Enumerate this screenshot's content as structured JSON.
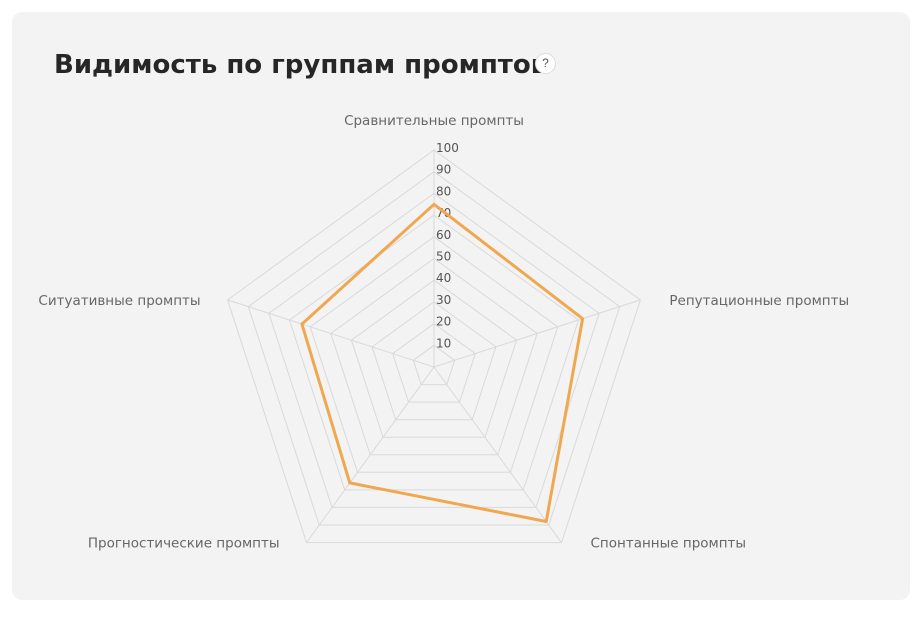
{
  "header": {
    "title": "Видимость по группам промптов",
    "help_icon": "question-icon",
    "help_label": "?"
  },
  "chart_data": {
    "type": "radar",
    "title": "Видимость по группам промптов",
    "axes": [
      "Сравнительные промпты",
      "Репутационные промпты",
      "Спонтанные промпты",
      "Прогностические промпты",
      "Ситуативные промпты"
    ],
    "tick_labels": [
      "10",
      "20",
      "30",
      "40",
      "50",
      "60",
      "70",
      "80",
      "90",
      "100"
    ],
    "rlim": [
      0,
      100
    ],
    "grid": true,
    "series": [
      {
        "values": [
          75,
          72,
          88,
          66,
          64
        ],
        "color": "#f0a850"
      }
    ]
  }
}
